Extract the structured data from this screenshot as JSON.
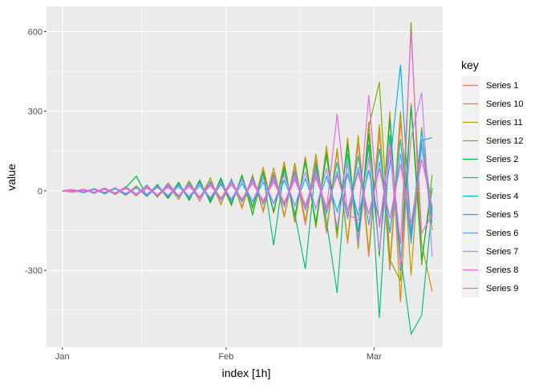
{
  "chart_data": {
    "type": "line",
    "xlabel": "index [1h]",
    "ylabel": "value",
    "ylim": [
      -590,
      695
    ],
    "xlim": [
      "Dec 29",
      "Mar 14"
    ],
    "grid": true,
    "legend_title": "key",
    "legend_placement": "right",
    "x_ticks": [
      "Jan",
      "Feb",
      "Mar"
    ],
    "y_ticks": [
      600,
      300,
      0,
      -300
    ],
    "x": [
      "Jan 1",
      "Jan 3",
      "Jan 5",
      "Jan 7",
      "Jan 9",
      "Jan 11",
      "Jan 13",
      "Jan 15",
      "Jan 17",
      "Jan 19",
      "Jan 21",
      "Jan 23",
      "Jan 25",
      "Jan 27",
      "Jan 29",
      "Jan 31",
      "Feb 2",
      "Feb 4",
      "Feb 6",
      "Feb 8",
      "Feb 10",
      "Feb 12",
      "Feb 14",
      "Feb 16",
      "Feb 18",
      "Feb 20",
      "Feb 22",
      "Feb 24",
      "Feb 26",
      "Feb 28",
      "Mar 2",
      "Mar 4",
      "Mar 6",
      "Mar 8",
      "Mar 10",
      "Mar 12"
    ],
    "series": [
      {
        "name": "Series 1",
        "color": "#F8766D",
        "values": [
          0,
          -4,
          6,
          -10,
          8,
          -15,
          12,
          -20,
          18,
          -25,
          30,
          -20,
          25,
          -40,
          35,
          -50,
          40,
          -60,
          55,
          -80,
          70,
          -100,
          90,
          -130,
          120,
          -160,
          150,
          -200,
          180,
          -250,
          220,
          -300,
          260,
          -150,
          180,
          -100
        ]
      },
      {
        "name": "Series 10",
        "color": "#DE8C00",
        "values": [
          0,
          5,
          -6,
          9,
          -12,
          10,
          -18,
          15,
          -22,
          20,
          -30,
          28,
          -35,
          40,
          -45,
          30,
          -55,
          60,
          -70,
          90,
          -85,
          110,
          -120,
          130,
          -140,
          170,
          -180,
          200,
          -220,
          260,
          -250,
          300,
          -420,
          330,
          -200,
          -380
        ]
      },
      {
        "name": "Series 11",
        "color": "#B79F00",
        "values": [
          0,
          -3,
          5,
          -8,
          11,
          -13,
          16,
          -19,
          22,
          -24,
          20,
          -33,
          38,
          -30,
          48,
          -52,
          45,
          -66,
          60,
          -75,
          88,
          -95,
          105,
          -115,
          140,
          -150,
          160,
          -190,
          210,
          -230,
          250,
          -280,
          300,
          -320,
          240,
          -150
        ]
      },
      {
        "name": "Series 12",
        "color": "#7CAE00",
        "values": [
          0,
          4,
          -5,
          7,
          -9,
          12,
          -14,
          18,
          -16,
          22,
          -26,
          30,
          -34,
          38,
          -42,
          46,
          -50,
          58,
          -64,
          72,
          -80,
          95,
          -105,
          120,
          -135,
          150,
          -170,
          190,
          -210,
          240,
          410,
          -260,
          -340,
          635,
          -280,
          60
        ]
      },
      {
        "name": "Series 2",
        "color": "#00BA38",
        "values": [
          0,
          -2,
          4,
          -6,
          8,
          -10,
          12,
          55,
          -20,
          24,
          -28,
          32,
          -36,
          40,
          -44,
          48,
          -52,
          56,
          -90,
          70,
          -78,
          86,
          -96,
          108,
          -120,
          135,
          -150,
          170,
          -190,
          215,
          -240,
          270,
          -300,
          320,
          -260,
          10
        ]
      },
      {
        "name": "Series 3",
        "color": "#00C08B",
        "values": [
          0,
          3,
          -4,
          6,
          -8,
          10,
          -12,
          14,
          -16,
          18,
          -20,
          24,
          -28,
          32,
          -36,
          40,
          -46,
          52,
          -58,
          66,
          -205,
          80,
          -88,
          -295,
          105,
          -115,
          -385,
          140,
          -155,
          175,
          -480,
          210,
          -240,
          -540,
          -470,
          -60
        ]
      },
      {
        "name": "Series 4",
        "color": "#00BFC4",
        "values": [
          0,
          -5,
          3,
          -7,
          10,
          -9,
          15,
          -13,
          20,
          -18,
          25,
          -22,
          30,
          -28,
          36,
          -34,
          42,
          -40,
          50,
          -48,
          60,
          -58,
          72,
          -70,
          88,
          -86,
          108,
          -106,
          132,
          -130,
          160,
          -158,
          195,
          -190,
          230,
          -90
        ]
      },
      {
        "name": "Series 5",
        "color": "#00B4F0",
        "values": [
          0,
          2,
          -7,
          5,
          -11,
          8,
          -15,
          11,
          -19,
          14,
          -23,
          17,
          -27,
          20,
          -31,
          24,
          -36,
          28,
          -42,
          33,
          -49,
          39,
          -57,
          46,
          -66,
          54,
          -78,
          64,
          -95,
          78,
          -120,
          98,
          475,
          -170,
          190,
          200
        ]
      },
      {
        "name": "Series 6",
        "color": "#619CFF",
        "values": [
          0,
          -6,
          4,
          -9,
          7,
          -12,
          10,
          -16,
          13,
          -20,
          17,
          -25,
          21,
          -30,
          26,
          -36,
          31,
          -43,
          37,
          -51,
          44,
          -60,
          52,
          -72,
          62,
          -86,
          74,
          -104,
          90,
          -128,
          110,
          -160,
          140,
          -200,
          170,
          -120
        ]
      },
      {
        "name": "Series 7",
        "color": "#C77CFF",
        "values": [
          0,
          4,
          -3,
          8,
          -6,
          11,
          -10,
          14,
          -13,
          18,
          -17,
          22,
          -21,
          27,
          -26,
          33,
          -32,
          40,
          -39,
          48,
          -47,
          58,
          -57,
          70,
          -69,
          86,
          -140,
          104,
          -200,
          128,
          -230,
          155,
          -290,
          200,
          370,
          -250
        ]
      },
      {
        "name": "Series 8",
        "color": "#F564E3",
        "values": [
          0,
          -3,
          6,
          -5,
          9,
          -8,
          13,
          -11,
          17,
          -15,
          21,
          -19,
          26,
          -24,
          31,
          -29,
          37,
          -35,
          44,
          -42,
          52,
          -50,
          62,
          -60,
          74,
          -72,
          290,
          -90,
          -110,
          360,
          -140,
          180,
          -200,
          600,
          -160,
          -90
        ]
      },
      {
        "name": "Series 9",
        "color": "#FF64B0",
        "values": [
          0,
          -2,
          3,
          -6,
          5,
          -9,
          8,
          -12,
          10,
          -15,
          13,
          -18,
          16,
          -22,
          19,
          -26,
          23,
          -31,
          28,
          -37,
          33,
          -44,
          40,
          -52,
          48,
          -62,
          58,
          -74,
          70,
          -88,
          84,
          -104,
          100,
          -122,
          118,
          -60
        ]
      }
    ]
  }
}
